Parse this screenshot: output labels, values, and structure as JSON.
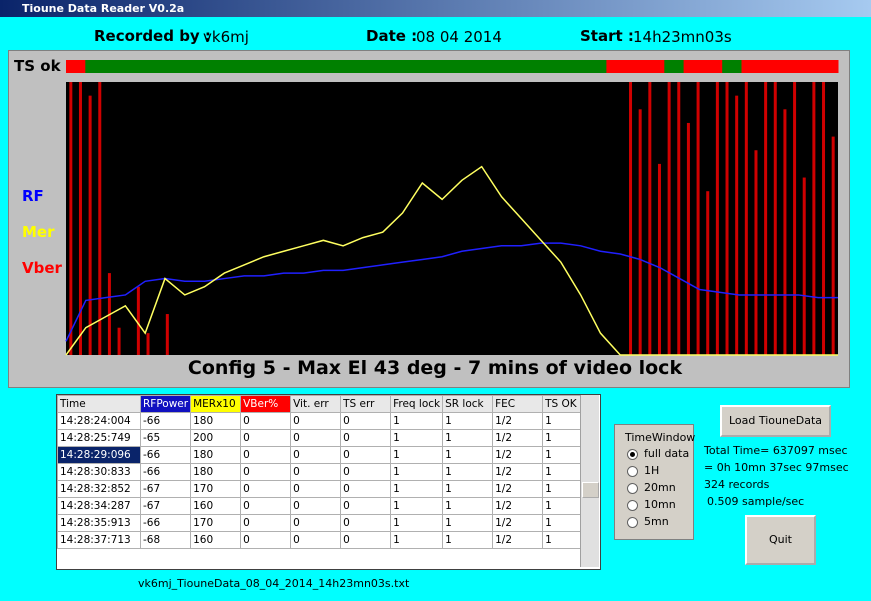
{
  "window": {
    "title": "Tioune Data Reader V0.2a"
  },
  "header": {
    "recorded_label": "Recorded by :",
    "recorded": "vk6mj",
    "date_label": "Date :",
    "date": "08 04 2014",
    "start_label": "Start :",
    "start": "14h23mn03s"
  },
  "status": {
    "label": "TS ok",
    "ts_ok": [
      0,
      1,
      1,
      1,
      1,
      1,
      1,
      1,
      1,
      1,
      1,
      1,
      1,
      1,
      1,
      1,
      1,
      1,
      1,
      1,
      1,
      1,
      1,
      1,
      1,
      1,
      1,
      1,
      0,
      0,
      0,
      1,
      0,
      0,
      1,
      0,
      0,
      0,
      0,
      0
    ]
  },
  "plot": {
    "legend": [
      "RF",
      "Mer",
      "Vber"
    ],
    "caption": "Config 5 - Max El 43 deg - 7 mins of video lock",
    "rf": [
      5,
      20,
      21,
      22,
      27,
      28,
      27,
      27,
      28,
      29,
      29,
      30,
      30,
      31,
      31,
      32,
      33,
      34,
      35,
      36,
      38,
      39,
      40,
      40,
      41,
      41,
      40,
      38,
      37,
      35,
      32,
      28,
      24,
      23,
      22,
      22,
      22,
      22,
      21,
      21
    ],
    "mer": [
      0,
      10,
      14,
      18,
      8,
      28,
      22,
      25,
      30,
      33,
      36,
      38,
      40,
      42,
      40,
      43,
      45,
      52,
      63,
      57,
      64,
      69,
      58,
      50,
      42,
      34,
      22,
      8,
      0,
      0,
      0,
      0,
      0,
      0,
      0,
      0,
      0,
      0,
      0,
      0
    ],
    "vber": [
      100,
      100,
      95,
      100,
      30,
      10,
      0,
      25,
      8,
      0,
      15,
      0,
      0,
      0,
      0,
      0,
      0,
      0,
      0,
      0,
      0,
      0,
      0,
      0,
      0,
      0,
      0,
      0,
      0,
      0,
      0,
      0,
      0,
      0,
      0,
      0,
      0,
      0,
      0,
      0,
      0,
      0,
      0,
      0,
      0,
      0,
      0,
      0,
      0,
      0,
      0,
      0,
      0,
      0,
      0,
      0,
      0,
      0,
      100,
      90,
      100,
      70,
      100,
      100,
      85,
      100,
      60,
      100,
      100,
      95,
      100,
      75,
      100,
      100,
      90,
      100,
      65,
      100,
      100,
      80
    ]
  },
  "table": {
    "columns": [
      "Time",
      "RFPower",
      "MERx10",
      "VBer%",
      "Vit. err",
      "TS err",
      "Freq lock",
      "SR lock",
      "FEC",
      "TS OK"
    ],
    "selected_row": 2,
    "rows": [
      [
        "14:28:24:004",
        "-66",
        "180",
        "0",
        "0",
        "0",
        "1",
        "1",
        "1/2",
        "1"
      ],
      [
        "14:28:25:749",
        "-65",
        "200",
        "0",
        "0",
        "0",
        "1",
        "1",
        "1/2",
        "1"
      ],
      [
        "14:28:29:096",
        "-66",
        "180",
        "0",
        "0",
        "0",
        "1",
        "1",
        "1/2",
        "1"
      ],
      [
        "14:28:30:833",
        "-66",
        "180",
        "0",
        "0",
        "0",
        "1",
        "1",
        "1/2",
        "1"
      ],
      [
        "14:28:32:852",
        "-67",
        "170",
        "0",
        "0",
        "0",
        "1",
        "1",
        "1/2",
        "1"
      ],
      [
        "14:28:34:287",
        "-67",
        "160",
        "0",
        "0",
        "0",
        "1",
        "1",
        "1/2",
        "1"
      ],
      [
        "14:28:35:913",
        "-66",
        "170",
        "0",
        "0",
        "0",
        "1",
        "1",
        "1/2",
        "1"
      ],
      [
        "14:28:37:713",
        "-68",
        "160",
        "0",
        "0",
        "0",
        "1",
        "1",
        "1/2",
        "1"
      ]
    ]
  },
  "filename": "vk6mj_TiouneData_08_04_2014_14h23mn03s.txt",
  "time_window": {
    "title": "TimeWindow",
    "selected": 0,
    "options": [
      "full data",
      "1H",
      "20mn",
      "10mn",
      "5mn"
    ]
  },
  "buttons": {
    "load": "Load TiouneData",
    "quit": "Quit"
  },
  "stats": [
    "Total Time= 637097 msec",
    "= 0h 10mn 37sec 97msec",
    "324 records",
    "0.509 sample/sec"
  ]
}
